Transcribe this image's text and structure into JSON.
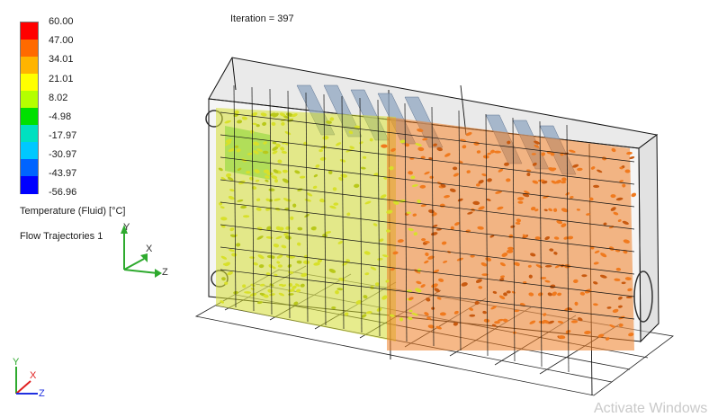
{
  "header": {
    "iteration": "Iteration = 397"
  },
  "legend": {
    "ticks": [
      "60.00",
      "47.00",
      "34.01",
      "21.01",
      "8.02",
      "-4.98",
      "-17.97",
      "-30.97",
      "-43.97",
      "-56.96"
    ],
    "colors": [
      "#ff0000",
      "#ff6a00",
      "#ffb400",
      "#ffff00",
      "#b4ff00",
      "#00e000",
      "#00e0c0",
      "#00c8ff",
      "#0064ff",
      "#0000ff"
    ],
    "title": "Temperature (Fluid) [°C]",
    "subtitle": "Flow Trajectories 1"
  },
  "triad": {
    "x": "X",
    "y": "Y",
    "z": "Z"
  },
  "watermark": "Activate Windows",
  "trajectory_colors": {
    "cold": "#d8e02a",
    "mid": "#b9c81a",
    "hot": "#f07a1e",
    "hot_dark": "#c85a10"
  }
}
